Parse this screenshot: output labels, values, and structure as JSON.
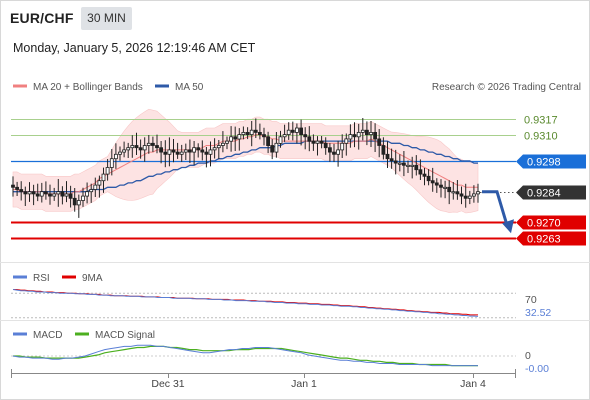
{
  "header": {
    "symbol": "EUR/CHF",
    "timeframe": "30 MIN",
    "datetime": "Monday, January 5, 2026 12:19:46 AM CET"
  },
  "legend": {
    "ma20": "MA 20 + Bollinger Bands",
    "ma50": "MA 50",
    "credit": "Research © 2026 Trading Central"
  },
  "colors": {
    "ma20": "#f08080",
    "ma50": "#2e5aa8",
    "bands_fill": "#fde3e3",
    "candle_up": "#222222",
    "resistance": "#a8d08d",
    "pivot": "#1a6fd8",
    "support": "#e00000",
    "current": "#333333",
    "rsi": "#5a7fd6",
    "rsi_ma": "#e00000",
    "macd": "#5a7fd6",
    "macd_signal": "#4caf1f"
  },
  "chart_data": [
    {
      "type": "candlestick",
      "ylim": [
        0.9252,
        0.9328
      ],
      "x_ticks": [
        "Dec 31",
        "Jan 1",
        "Jan 4"
      ],
      "close": [
        0.9286,
        0.9285,
        0.9284,
        0.9283,
        0.9284,
        0.9283,
        0.9282,
        0.9284,
        0.9283,
        0.9282,
        0.9283,
        0.9284,
        0.9282,
        0.9283,
        0.9281,
        0.9278,
        0.928,
        0.9282,
        0.9284,
        0.9285,
        0.9287,
        0.9289,
        0.9292,
        0.9295,
        0.9299,
        0.9301,
        0.9302,
        0.9303,
        0.9304,
        0.9305,
        0.9304,
        0.9303,
        0.9305,
        0.9306,
        0.9305,
        0.9304,
        0.9302,
        0.9301,
        0.9303,
        0.9302,
        0.9301,
        0.9302,
        0.9303,
        0.9302,
        0.9304,
        0.9303,
        0.9302,
        0.9301,
        0.9303,
        0.9304,
        0.9305,
        0.9306,
        0.9307,
        0.9309,
        0.9308,
        0.931,
        0.9311,
        0.931,
        0.9312,
        0.9311,
        0.931,
        0.9309,
        0.9305,
        0.9302,
        0.9306,
        0.9309,
        0.931,
        0.9312,
        0.9311,
        0.9313,
        0.931,
        0.9309,
        0.9307,
        0.9306,
        0.9307,
        0.9306,
        0.9304,
        0.9302,
        0.9301,
        0.9303,
        0.9306,
        0.9308,
        0.931,
        0.9309,
        0.9311,
        0.9312,
        0.931,
        0.9311,
        0.9308,
        0.9305,
        0.9301,
        0.9299,
        0.9298,
        0.9297,
        0.9297,
        0.9296,
        0.9296,
        0.9296,
        0.9294,
        0.9292,
        0.9291,
        0.9289,
        0.9288,
        0.9287,
        0.9286,
        0.9286,
        0.9284,
        0.9284,
        0.9283,
        0.9282,
        0.9281,
        0.9282,
        0.9283,
        0.9284
      ],
      "ma20": [
        0.9285,
        0.9285,
        0.9284,
        0.9284,
        0.9284,
        0.9284,
        0.9284,
        0.9284,
        0.9283,
        0.9283,
        0.9283,
        0.9283,
        0.9283,
        0.9283,
        0.9283,
        0.9284,
        0.9284,
        0.9285,
        0.9286,
        0.9287,
        0.9288,
        0.929,
        0.9291,
        0.9292,
        0.9293,
        0.9294,
        0.9295,
        0.9296,
        0.9297,
        0.9298,
        0.9299,
        0.93,
        0.9301,
        0.9302,
        0.9302,
        0.9303,
        0.9303,
        0.9303,
        0.9303,
        0.9303,
        0.9303,
        0.9303,
        0.9303,
        0.9303,
        0.9303,
        0.9303,
        0.9304,
        0.9305,
        0.9305,
        0.9305,
        0.9306,
        0.9307,
        0.9307,
        0.9307,
        0.9307,
        0.9308,
        0.9308,
        0.9309,
        0.9309,
        0.931,
        0.931,
        0.9309,
        0.9309,
        0.9308,
        0.9308,
        0.9307,
        0.9307,
        0.9307,
        0.9307,
        0.9307,
        0.9307,
        0.9307,
        0.9307,
        0.9307,
        0.9307,
        0.9307,
        0.9306,
        0.9306,
        0.9306,
        0.9306,
        0.9306,
        0.9306,
        0.9306,
        0.9307,
        0.9307,
        0.9307,
        0.9307,
        0.9308,
        0.9307,
        0.9306,
        0.9305,
        0.9304,
        0.9303,
        0.9302,
        0.9301,
        0.93,
        0.9299,
        0.9298,
        0.9297,
        0.9296,
        0.9295,
        0.9294,
        0.9293,
        0.9292,
        0.9291,
        0.929,
        0.9289,
        0.9288,
        0.9287,
        0.9287,
        0.9286,
        0.9286,
        0.9286,
        0.9286
      ],
      "ma50": [
        0.9284,
        0.9284,
        0.9284,
        0.9284,
        0.9284,
        0.9284,
        0.9284,
        0.9284,
        0.9284,
        0.9284,
        0.9284,
        0.9284,
        0.9284,
        0.9284,
        0.9284,
        0.9284,
        0.9284,
        0.9284,
        0.9284,
        0.9285,
        0.9285,
        0.9285,
        0.9285,
        0.9286,
        0.9286,
        0.9286,
        0.9287,
        0.9287,
        0.9288,
        0.9288,
        0.9289,
        0.9289,
        0.929,
        0.9291,
        0.9291,
        0.9292,
        0.9292,
        0.9293,
        0.9293,
        0.9294,
        0.9294,
        0.9295,
        0.9295,
        0.9296,
        0.9296,
        0.9297,
        0.9297,
        0.9297,
        0.9298,
        0.9298,
        0.9299,
        0.9299,
        0.93,
        0.93,
        0.9301,
        0.9301,
        0.9302,
        0.9302,
        0.9303,
        0.9303,
        0.9304,
        0.9304,
        0.9304,
        0.9304,
        0.9305,
        0.9305,
        0.9306,
        0.9306,
        0.9306,
        0.9306,
        0.9306,
        0.9307,
        0.9307,
        0.9307,
        0.9307,
        0.9307,
        0.9307,
        0.9307,
        0.9307,
        0.9307,
        0.9307,
        0.9307,
        0.9307,
        0.9307,
        0.9307,
        0.9307,
        0.9307,
        0.9307,
        0.9307,
        0.9307,
        0.9307,
        0.9307,
        0.9306,
        0.9306,
        0.9306,
        0.9305,
        0.9305,
        0.9304,
        0.9304,
        0.9303,
        0.9303,
        0.9302,
        0.9302,
        0.9301,
        0.9301,
        0.93,
        0.93,
        0.9299,
        0.9299,
        0.9298,
        0.9298,
        0.9298,
        0.9297,
        0.9297
      ],
      "levels": [
        {
          "value": 0.9317,
          "label": "0.9317",
          "role": "resistance"
        },
        {
          "value": 0.931,
          "label": "0.9310",
          "role": "resistance"
        },
        {
          "value": 0.9298,
          "label": "0.9298",
          "role": "pivot"
        },
        {
          "value": 0.9284,
          "label": "0.9284",
          "role": "current"
        },
        {
          "value": 0.927,
          "label": "0.9270",
          "role": "support"
        },
        {
          "value": 0.9263,
          "label": "0.9263",
          "role": "support"
        }
      ],
      "forecast_arrow": {
        "from": 0.9284,
        "to": 0.9266,
        "direction": "down"
      }
    },
    {
      "type": "line",
      "title": "RSI",
      "series": [
        {
          "name": "RSI",
          "values": [
            76,
            75,
            74,
            74,
            73,
            73,
            72,
            72,
            72,
            71,
            71,
            71,
            70,
            70,
            70,
            70,
            69,
            69,
            69,
            68,
            68,
            68,
            67,
            67,
            67,
            66,
            66,
            66,
            66,
            65,
            65,
            65,
            65,
            64,
            64,
            64,
            64,
            63,
            63,
            63,
            63,
            62,
            62,
            62,
            62,
            62,
            61,
            61,
            61,
            61,
            60,
            60,
            60,
            60,
            59,
            59,
            59,
            58,
            58,
            58,
            58,
            57,
            57,
            57,
            57,
            56,
            56,
            55,
            55,
            55,
            54,
            54,
            54,
            53,
            53,
            53,
            52,
            52,
            52,
            51,
            51,
            51,
            50,
            50,
            49,
            49,
            49,
            48,
            48,
            47,
            47,
            46,
            46,
            45,
            45,
            44,
            44,
            43,
            43,
            42,
            42,
            41,
            41,
            40,
            40,
            39,
            39,
            38,
            38,
            37,
            37,
            36,
            36,
            35,
            35,
            34,
            34,
            33,
            33,
            32.52
          ]
        },
        {
          "name": "9MA",
          "values": [
            76,
            76,
            75,
            75,
            74,
            74,
            73,
            73,
            72,
            72,
            72,
            71,
            71,
            71,
            70,
            70,
            70,
            69,
            69,
            69,
            68,
            68,
            68,
            67,
            67,
            67,
            66,
            66,
            66,
            66,
            65,
            65,
            65,
            65,
            64,
            64,
            64,
            64,
            63,
            63,
            63,
            63,
            62,
            62,
            62,
            62,
            62,
            61,
            61,
            61,
            61,
            60,
            60,
            60,
            60,
            60,
            59,
            59,
            59,
            59,
            58,
            58,
            58,
            57,
            57,
            57,
            57,
            56,
            56,
            56,
            55,
            55,
            55,
            54,
            54,
            54,
            53,
            53,
            53,
            52,
            52,
            52,
            51,
            51,
            50,
            50,
            50,
            49,
            49,
            48,
            48,
            47,
            47,
            46,
            46,
            45,
            45,
            44,
            44,
            43,
            43,
            42,
            42,
            41,
            41,
            40,
            40,
            39,
            39,
            39,
            38,
            38,
            37,
            37,
            37,
            36,
            36,
            35,
            35,
            35
          ]
        }
      ],
      "ylim": [
        30,
        80
      ],
      "ref_label": "70",
      "ref_value": 70,
      "current_label": "32.52"
    },
    {
      "type": "line",
      "title": "MACD",
      "series": [
        {
          "name": "MACD",
          "values": [
            0,
            -0.0001,
            -0.0001,
            -0.0002,
            -0.0002,
            -0.0002,
            -0.0003,
            -0.0003,
            -0.0002,
            -0.0002,
            -0.0001,
            0,
            0.0002,
            0.0004,
            0.0006,
            0.0007,
            0.0008,
            0.0009,
            0.0009,
            0.001,
            0.001,
            0.001,
            0.0009,
            0.0009,
            0.0008,
            0.0007,
            0.0006,
            0.0005,
            0.0004,
            0.0003,
            0.0003,
            0.0004,
            0.0005,
            0.0006,
            0.0006,
            0.0007,
            0.0007,
            0.0008,
            0.0008,
            0.0008,
            0.0007,
            0.0006,
            0.0005,
            0.0004,
            0.0003,
            0.0001,
            0,
            -0.0001,
            -0.0002,
            -0.0003,
            -0.0004,
            -0.0004,
            -0.0005,
            -0.0005,
            -0.0006,
            -0.0006,
            -0.0007,
            -0.0007,
            -0.0007,
            -0.0008,
            -0.0008,
            -0.0008,
            -0.0008,
            -0.0008,
            -0.0009,
            -0.0009,
            -0.0009,
            -0.0009,
            -0.0009,
            -0.0009,
            -0.0009,
            -0.0009
          ]
        },
        {
          "name": "MACD Signal",
          "values": [
            0,
            0,
            -0.0001,
            -0.0001,
            -0.0001,
            -0.0002,
            -0.0002,
            -0.0002,
            -0.0002,
            -0.0002,
            -0.0002,
            -0.0001,
            0,
            0.0001,
            0.0003,
            0.0004,
            0.0005,
            0.0006,
            0.0007,
            0.0008,
            0.0008,
            0.0009,
            0.0009,
            0.0009,
            0.0008,
            0.0008,
            0.0007,
            0.0006,
            0.0006,
            0.0005,
            0.0005,
            0.0005,
            0.0005,
            0.0005,
            0.0006,
            0.0006,
            0.0006,
            0.0007,
            0.0007,
            0.0007,
            0.0007,
            0.0007,
            0.0006,
            0.0005,
            0.0004,
            0.0003,
            0.0002,
            0.0001,
            0,
            -0.0001,
            -0.0002,
            -0.0002,
            -0.0003,
            -0.0004,
            -0.0004,
            -0.0005,
            -0.0005,
            -0.0006,
            -0.0006,
            -0.0007,
            -0.0007,
            -0.0007,
            -0.0008,
            -0.0008,
            -0.0008,
            -0.0008,
            -0.0008,
            -0.0009,
            -0.0009,
            -0.0009,
            -0.0009,
            -0.0009
          ]
        }
      ],
      "ylim": [
        -0.0015,
        0.0015
      ],
      "ref_label": "0",
      "current_label": "-0.00"
    }
  ]
}
